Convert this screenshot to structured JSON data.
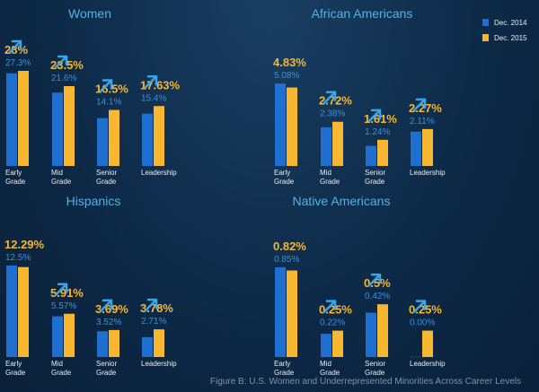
{
  "colors": {
    "dec_2014": "#1f6fd0",
    "dec_2015": "#f7b731",
    "arrow": "#3aa6ea",
    "title": "#4fb3e8"
  },
  "legend": {
    "items": [
      {
        "label": "Dec. 2014",
        "color": "#1f6fd0"
      },
      {
        "label": "Dec. 2015",
        "color": "#f7b731"
      }
    ]
  },
  "caption": "Figure B: U.S. Women and Underrepresented Minorities Across Career Levels",
  "chart_data": [
    {
      "type": "bar",
      "title": "Women",
      "categories": [
        "Early Grade",
        "Mid Grade",
        "Senior Grade",
        "Leadership"
      ],
      "series": [
        {
          "name": "Dec. 2014",
          "values": [
            27.3,
            21.6,
            14.1,
            15.4
          ]
        },
        {
          "name": "Dec. 2015",
          "values": [
            28,
            23.5,
            16.5,
            17.63
          ]
        }
      ],
      "labels_2014": [
        "27.3%",
        "21.6%",
        "14.1%",
        "15.4%"
      ],
      "labels_2015": [
        "28%",
        "23.5%",
        "16.5%",
        "17.63%"
      ],
      "arrow_up": [
        true,
        true,
        true,
        true
      ]
    },
    {
      "type": "bar",
      "title": "African Americans",
      "categories": [
        "Early Grade",
        "Mid Grade",
        "Senior Grade",
        "Leadership"
      ],
      "series": [
        {
          "name": "Dec. 2014",
          "values": [
            5.08,
            2.38,
            1.24,
            2.11
          ]
        },
        {
          "name": "Dec. 2015",
          "values": [
            4.83,
            2.72,
            1.61,
            2.27
          ]
        }
      ],
      "labels_2014": [
        "5.08%",
        "2.38%",
        "1.24%",
        "2.11%"
      ],
      "labels_2015": [
        "4.83%",
        "2.72%",
        "1.61%",
        "2.27%"
      ],
      "arrow_up": [
        false,
        true,
        true,
        true
      ]
    },
    {
      "type": "bar",
      "title": "Hispanics",
      "categories": [
        "Early Grade",
        "Mid Grade",
        "Senior Grade",
        "Leadership"
      ],
      "series": [
        {
          "name": "Dec. 2014",
          "values": [
            12.5,
            5.57,
            3.52,
            2.71
          ]
        },
        {
          "name": "Dec. 2015",
          "values": [
            12.29,
            5.91,
            3.69,
            3.78
          ]
        }
      ],
      "labels_2014": [
        "12.5%",
        "5.57%",
        "3.52%",
        "2.71%"
      ],
      "labels_2015": [
        "12.29%",
        "5.91%",
        "3.69%",
        "3.78%"
      ],
      "arrow_up": [
        false,
        true,
        true,
        true
      ]
    },
    {
      "type": "bar",
      "title": "Native Americans",
      "categories": [
        "Early Grade",
        "Mid Grade",
        "Senior Grade",
        "Leadership"
      ],
      "series": [
        {
          "name": "Dec. 2014",
          "values": [
            0.85,
            0.22,
            0.42,
            0
          ]
        },
        {
          "name": "Dec. 2015",
          "values": [
            0.82,
            0.25,
            0.5,
            0.25
          ]
        }
      ],
      "labels_2014": [
        "0.85%",
        "0.22%",
        "0.42%",
        "0.00%"
      ],
      "labels_2015": [
        "0.82%",
        "0.25%",
        "0.5%",
        "0.25%"
      ],
      "arrow_up": [
        false,
        true,
        true,
        true
      ]
    }
  ]
}
